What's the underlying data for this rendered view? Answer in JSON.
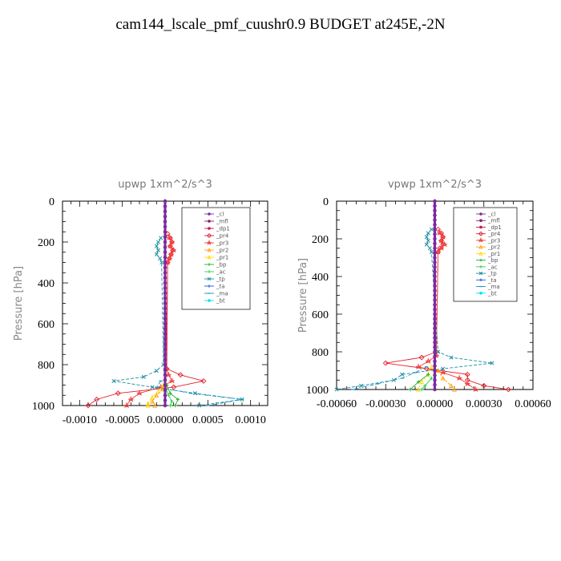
{
  "title": "cam144_lscale_pmf_cuushr0.9  BUDGET at245E,-2N",
  "legend_entries": [
    "_cl",
    "_mfl",
    "_dp1",
    "_pr4",
    "_pr3",
    "_pr2",
    "_pr1",
    "_bp",
    "_ac",
    "_tp",
    "_ta",
    "_ma",
    "_bt"
  ],
  "colors": {
    "_cl": "#7b2aa0",
    "_mfl": "#8b1a6b",
    "_dp1": "#c0185a",
    "_pr4": "#e0202a",
    "_pr3": "#f04040",
    "_pr2": "#ffa000",
    "_pr1": "#ffd800",
    "_bp": "#20b020",
    "_ac": "#30d050",
    "_tp": "#1a8fa0",
    "_ta": "#2050e0",
    "_ma": "#1a90c0",
    "_bt": "#00e0ff"
  },
  "chart_data": [
    {
      "type": "line",
      "title": "upwp   1xm^2/s^3",
      "ylabel": "Pressure [hPa]",
      "xlabel": "",
      "xlim": [
        -0.0012,
        0.0012
      ],
      "ylim": [
        1000,
        0
      ],
      "xticks": [
        -0.001,
        -0.0005,
        0.0,
        0.0005,
        0.001
      ],
      "xtick_labels": [
        "-0.0010",
        "-0.0005",
        "0.00000",
        "0.0005",
        "0.0010"
      ],
      "yticks": [
        0,
        200,
        400,
        600,
        800,
        1000
      ],
      "ytick_labels": [
        "0",
        "200",
        "400",
        "600",
        "800",
        "1000"
      ],
      "legend": "top-right",
      "series": [
        {
          "name": "_pr4",
          "y": [
            160,
            180,
            200,
            220,
            240,
            260,
            280,
            300,
            820,
            850,
            880,
            910,
            940,
            970,
            1000
          ],
          "x": [
            3e-05,
            6e-05,
            8e-05,
            6e-05,
            9e-05,
            7e-05,
            5e-05,
            3e-05,
            2e-05,
            0.00018,
            0.00045,
            0.0001,
            -0.00055,
            -0.0008,
            -0.0009
          ]
        },
        {
          "name": "_pr3",
          "y": [
            180,
            200,
            220,
            240,
            260,
            280,
            300,
            820,
            850,
            880,
            910,
            940,
            970,
            1000
          ],
          "x": [
            5e-05,
            8e-05,
            6e-05,
            0.0001,
            7e-05,
            5e-05,
            3e-05,
            1e-05,
            4e-05,
            8e-05,
            -5e-05,
            -0.0003,
            -0.0004,
            -0.00045
          ]
        },
        {
          "name": "_tp",
          "y": [
            180,
            200,
            220,
            240,
            260,
            280,
            300,
            800,
            830,
            860,
            880,
            910,
            940,
            970,
            1000
          ],
          "x": [
            -5e-05,
            -8e-05,
            -0.0001,
            -8e-05,
            -0.0001,
            -6e-05,
            -4e-05,
            -2e-05,
            -0.0001,
            -0.00025,
            -0.0006,
            -0.00015,
            0.00035,
            0.0009,
            0.0004
          ]
        },
        {
          "name": "_ma",
          "y": [
            880,
            910,
            940,
            970,
            1000
          ],
          "x": [
            -5e-05,
            -0.0001,
            0.0003,
            0.0009,
            0.0005
          ]
        },
        {
          "name": "_pr1",
          "y": [
            900,
            930,
            960,
            990,
            1000
          ],
          "x": [
            -2e-05,
            -8e-05,
            -0.00015,
            -0.0002,
            -0.0002
          ]
        },
        {
          "name": "_pr2",
          "y": [
            920,
            950,
            980,
            1000
          ],
          "x": [
            -3e-05,
            -0.0001,
            -0.00015,
            -0.00012
          ]
        },
        {
          "name": "_bp",
          "y": [
            900,
            940,
            970,
            1000
          ],
          "x": [
            2e-05,
            6e-05,
            0.00015,
            0.00012
          ]
        },
        {
          "name": "_ac",
          "y": [
            920,
            950,
            980,
            1000
          ],
          "x": [
            1e-05,
            4e-05,
            8e-05,
            6e-05
          ]
        },
        {
          "name": "_mfl",
          "y": [
            0,
            1000
          ],
          "x": [
            0.0,
            0.0
          ]
        },
        {
          "name": "_cl",
          "y": [
            0,
            1000
          ],
          "x": [
            0.0,
            0.0
          ]
        }
      ]
    },
    {
      "type": "line",
      "title": "vpwp   1xm^2/s^3",
      "ylabel": "Pressure [hPa]",
      "xlabel": "",
      "xlim": [
        -0.0006,
        0.0006
      ],
      "ylim": [
        1000,
        0
      ],
      "xticks": [
        -0.0006,
        -0.0003,
        0.0,
        0.0003,
        0.0006
      ],
      "xtick_labels": [
        "-0.00060",
        "-0.00030",
        "0.00000",
        "0.00030",
        "0.00060"
      ],
      "yticks": [
        0,
        200,
        400,
        600,
        800,
        1000
      ],
      "ytick_labels": [
        "0",
        "200",
        "400",
        "600",
        "800",
        "1000"
      ],
      "legend": "top-right",
      "series": [
        {
          "name": "_pr4",
          "y": [
            150,
            170,
            190,
            210,
            230,
            250,
            270,
            800,
            830,
            860,
            890,
            920,
            950,
            980,
            1000
          ],
          "x": [
            2e-05,
            4e-05,
            5e-05,
            4e-05,
            5e-05,
            3e-05,
            2e-05,
            1e-05,
            -8e-05,
            -0.0003,
            -5e-05,
            0.0002,
            0.0002,
            0.0003,
            0.00045
          ]
        },
        {
          "name": "_pr3",
          "y": [
            170,
            190,
            210,
            230,
            250,
            270,
            820,
            850,
            880,
            910,
            940,
            970,
            1000
          ],
          "x": [
            3e-05,
            5e-05,
            4e-05,
            6e-05,
            4e-05,
            2e-05,
            1e-05,
            -4e-05,
            -0.0001,
            5e-05,
            0.00015,
            0.0002,
            0.00025
          ]
        },
        {
          "name": "_tp",
          "y": [
            150,
            170,
            190,
            210,
            230,
            250,
            270,
            800,
            830,
            860,
            890,
            920,
            950,
            980,
            1000
          ],
          "x": [
            -2e-05,
            -4e-05,
            -5e-05,
            -4e-05,
            -5e-05,
            -3e-05,
            -2e-05,
            2e-05,
            0.0001,
            0.00035,
            5e-05,
            -0.0002,
            -0.00025,
            -0.00045,
            -0.0006
          ]
        },
        {
          "name": "_ma",
          "y": [
            880,
            910,
            940,
            970,
            1000
          ],
          "x": [
            -5e-05,
            -0.00012,
            -0.0002,
            -0.00035,
            -0.0005
          ]
        },
        {
          "name": "_pr1",
          "y": [
            880,
            920,
            960,
            1000
          ],
          "x": [
            -2e-05,
            -4e-05,
            -8e-05,
            -0.0001
          ]
        },
        {
          "name": "_pr2",
          "y": [
            900,
            940,
            980,
            1000
          ],
          "x": [
            2e-05,
            5e-05,
            0.0001,
            0.00012
          ]
        },
        {
          "name": "_bp",
          "y": [
            920,
            960,
            1000
          ],
          "x": [
            -4e-05,
            -0.0001,
            -0.00015
          ]
        },
        {
          "name": "_ac",
          "y": [
            940,
            980,
            1000
          ],
          "x": [
            -2e-05,
            -6e-05,
            -8e-05
          ]
        },
        {
          "name": "_mfl",
          "y": [
            0,
            1000
          ],
          "x": [
            0.0,
            0.0
          ]
        },
        {
          "name": "_cl",
          "y": [
            0,
            1000
          ],
          "x": [
            0.0,
            0.0
          ]
        }
      ]
    }
  ]
}
